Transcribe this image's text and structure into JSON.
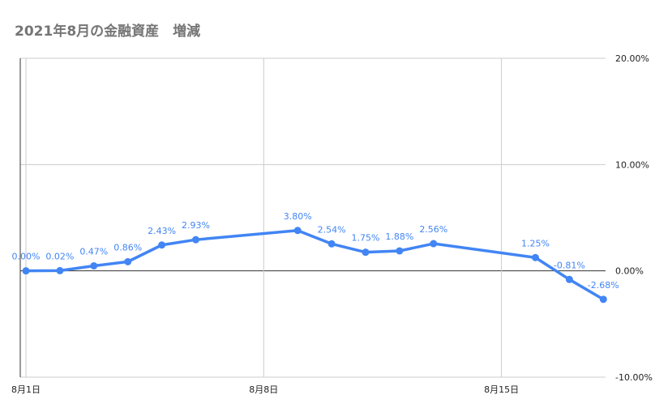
{
  "chart_data": {
    "type": "line",
    "title": "2021年8月の金融資産　増減",
    "xlabel": "",
    "ylabel": "",
    "x": [
      1,
      2,
      3,
      4,
      5,
      6,
      9,
      10,
      11,
      12,
      13,
      16,
      17,
      18
    ],
    "x_tick_values": [
      1,
      8,
      15
    ],
    "x_tick_labels": [
      "8月1日",
      "8月8日",
      "8月15日"
    ],
    "xlim": [
      1,
      18
    ],
    "y_tick_values": [
      20,
      10,
      0,
      -10
    ],
    "y_tick_labels": [
      "20.00%",
      "10.00%",
      "0.00%",
      "-10.00%"
    ],
    "ylim": [
      -10,
      20
    ],
    "y_axis_position": "right",
    "grid": true,
    "series": [
      {
        "name": "",
        "color": "#4285f4",
        "values": [
          0.0,
          0.02,
          0.47,
          0.86,
          2.43,
          2.93,
          3.8,
          2.54,
          1.75,
          1.88,
          2.56,
          1.25,
          -0.81,
          -2.68
        ],
        "labels": [
          "0.00%",
          "0.02%",
          "0.47%",
          "0.86%",
          "2.43%",
          "2.93%",
          "3.80%",
          "2.54%",
          "1.75%",
          "1.88%",
          "2.56%",
          "1.25%",
          "-0.81%",
          "-2.68%"
        ]
      }
    ]
  }
}
